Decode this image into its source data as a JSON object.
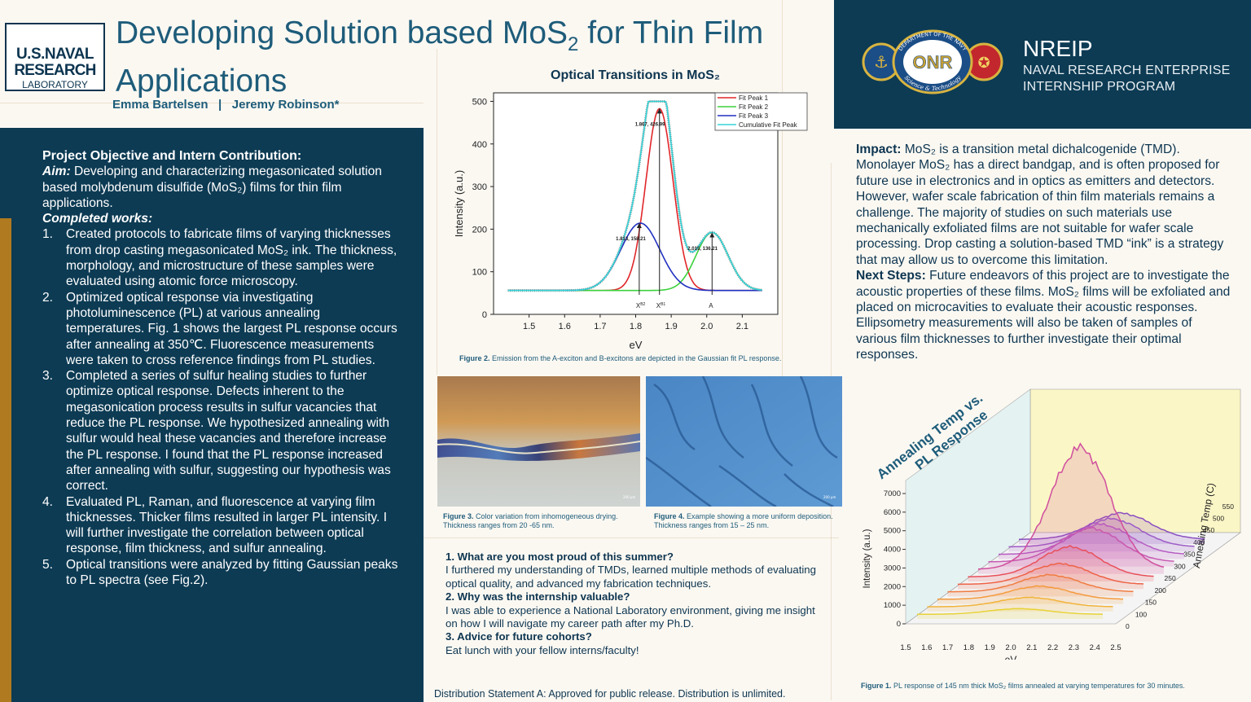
{
  "header": {
    "logo": {
      "line1": "U.S.NAVAL",
      "line2": "RESEARCH",
      "line3": "LABORATORY"
    },
    "title_part1": "Developing Solution based MoS",
    "title_sub": "2",
    "title_part2": " for Thin Film Applications",
    "authors": "Emma Bartelsen   |   Jeremy Robinson*"
  },
  "nreip": {
    "title": "NREIP",
    "subtitle_line1": "NAVAL RESEARCH ENTERPRISE",
    "subtitle_line2": "INTERNSHIP PROGRAM",
    "onr_logo_text": "ONR",
    "onr_ring_top": "DEPARTMENT OF THE NAVY",
    "onr_ring_bottom": "Science & Technology"
  },
  "left": {
    "heading": "Project Objective and Intern Contribution:",
    "aim_label": "Aim:",
    "aim_text": " Developing and characterizing megasonicated solution based molybdenum disulfide (MoS₂) films for thin film applications.",
    "completed_label": "Completed works:",
    "items": [
      {
        "num": "1.",
        "text": "Created protocols to fabricate films of varying thicknesses from drop casting megasonicated MoS₂ ink. The thickness, morphology, and microstructure of these samples were evaluated using atomic force microscopy."
      },
      {
        "num": "2.",
        "text": "Optimized optical response via investigating photoluminescence (PL) at various annealing temperatures. Fig. 1 shows the largest PL response occurs after annealing at 350℃. Fluorescence measurements were taken to cross reference findings from PL studies."
      },
      {
        "num": "3.",
        "text": "Completed a series of sulfur healing studies to further optimize optical response. Defects inherent to the megasonication process results in sulfur vacancies that reduce the PL response. We hypothesized annealing with sulfur would heal these vacancies and therefore increase the PL response. I found that the PL response increased after annealing with sulfur, suggesting our hypothesis was correct."
      },
      {
        "num": "4.",
        "text": "Evaluated  PL, Raman, and fluorescence at varying film thicknesses. Thicker films resulted in larger PL intensity. I will further investigate the correlation between optical response, film thickness, and sulfur annealing."
      },
      {
        "num": "5.",
        "text": "Optical transitions were analyzed by fitting Gaussian peaks to PL spectra (see Fig.2)."
      }
    ]
  },
  "chart_data": [
    {
      "type": "line",
      "title": "Optical Transitions in MoS₂",
      "xlabel": "eV",
      "ylabel": "Intensity (a.u.)",
      "xlim": [
        1.4,
        2.2
      ],
      "ylim": [
        0,
        520
      ],
      "xticks": [
        1.5,
        1.6,
        1.7,
        1.8,
        1.9,
        2.0,
        2.1
      ],
      "yticks": [
        0,
        100,
        200,
        300,
        400,
        500
      ],
      "legend_position": "top-right",
      "baseline": 56,
      "series": [
        {
          "name": "Fit Peak 1",
          "color": "#e0262a",
          "center": 1.867,
          "height": 426.99,
          "sigma": 0.038
        },
        {
          "name": "Fit Peak 2",
          "color": "#3cd23c",
          "center": 2.015,
          "height": 136.21,
          "sigma": 0.045
        },
        {
          "name": "Fit Peak 3",
          "color": "#2030c0",
          "center": 1.813,
          "height": 158.21,
          "sigma": 0.055
        },
        {
          "name": "Cumulative Fit Peak",
          "color": "#35d4d8"
        }
      ],
      "annotations": [
        {
          "text": "1.867, 426.99",
          "x": 1.867,
          "y": 426.99
        },
        {
          "text": "1.813, 158.21",
          "x": 1.813,
          "y": 158.21
        },
        {
          "text": "2.015, 136.21",
          "x": 2.015,
          "y": 136.21
        }
      ],
      "arrow_labels": [
        {
          "text": "X",
          "sup": "B2",
          "x": 1.81
        },
        {
          "text": "X",
          "sup": "B1",
          "x": 1.867
        },
        {
          "text": "A",
          "x": 2.015
        }
      ]
    },
    {
      "type": "line",
      "title": "Annealing Temp vs. PL Response",
      "xlabel": "eV",
      "ylabel": "Intensity (a.u.)",
      "zlabel": "Annealing Temp (C)",
      "xticks": [
        1.5,
        1.6,
        1.7,
        1.8,
        1.9,
        2.0,
        2.1,
        2.2,
        2.3,
        2.4,
        2.5
      ],
      "yticks": [
        0,
        1000,
        2000,
        3000,
        4000,
        5000,
        6000,
        7000
      ],
      "zticks": [
        0,
        100,
        150,
        200,
        250,
        300,
        350,
        400,
        450,
        500,
        550
      ],
      "series_temps": [
        0,
        100,
        150,
        200,
        250,
        300,
        350,
        400,
        450,
        500,
        550
      ],
      "series_peaks": [
        300,
        500,
        700,
        900,
        1100,
        1600,
        6500,
        1800,
        1600,
        1500,
        1400
      ],
      "series_colors": [
        "#e8d236",
        "#f2b33a",
        "#f49a3c",
        "#f07c40",
        "#ee6246",
        "#e8505a",
        "#d04e9e",
        "#c65bb3",
        "#b55bc2",
        "#9c5bc6",
        "#8a4fc0"
      ]
    }
  ],
  "fig2_caption": {
    "label": "Figure 2.",
    "text": " Emission from the A-exciton and B-excitons are depicted in the Gaussian fit PL response."
  },
  "fig3_caption": {
    "label": "Figure 3.",
    "text": " Color variation from inhomogeneous drying. Thickness ranges from 20 -65 nm."
  },
  "fig4_caption": {
    "label": "Figure 4.",
    "text": " Example showing a more uniform deposition. Thickness ranges from 15 – 25 nm."
  },
  "fig1_caption": {
    "label": "Figure 1.",
    "text": " PL response of 145 nm thick MoS₂ films annealed at varying temperatures for 30 minutes."
  },
  "qa": [
    {
      "q": "1. What are you most proud of this summer?",
      "a": "I furthered my understanding of TMDs, learned multiple methods of evaluating optical quality, and advanced my fabrication techniques."
    },
    {
      "q": "2. Why was the internship valuable?",
      "a": "I was able to experience a National Laboratory environment, giving me insight on how I will navigate my career path after my Ph.D."
    },
    {
      "q": "3. Advice for future cohorts?",
      "a": "Eat lunch with your fellow interns/faculty!"
    }
  ],
  "distribution": "Distribution Statement A: Approved for public release. Distribution is unlimited.",
  "right": {
    "impact_label": "Impact:",
    "impact_text": " MoS₂ is a transition metal dichalcogenide (TMD). Monolayer MoS₂ has a direct bandgap, and is often proposed for future use in electronics and in optics as emitters and detectors. However, wafer scale fabrication of thin film materials remains a challenge. The majority of studies on such materials use mechanically exfoliated films are not suitable for wafer scale processing. Drop casting a solution-based TMD “ink” is a strategy that may allow us to overcome this limitation.",
    "next_label": "Next Steps:",
    "next_text": " Future endeavors of this project are to investigate the acoustic properties of these films. MoS₂ films will be exfoliated and placed on microcavities to evaluate their acoustic responses. Ellipsometry measurements will also be taken of samples of various film thicknesses to further investigate their optimal responses."
  },
  "scale_bar_text": "200 µm"
}
